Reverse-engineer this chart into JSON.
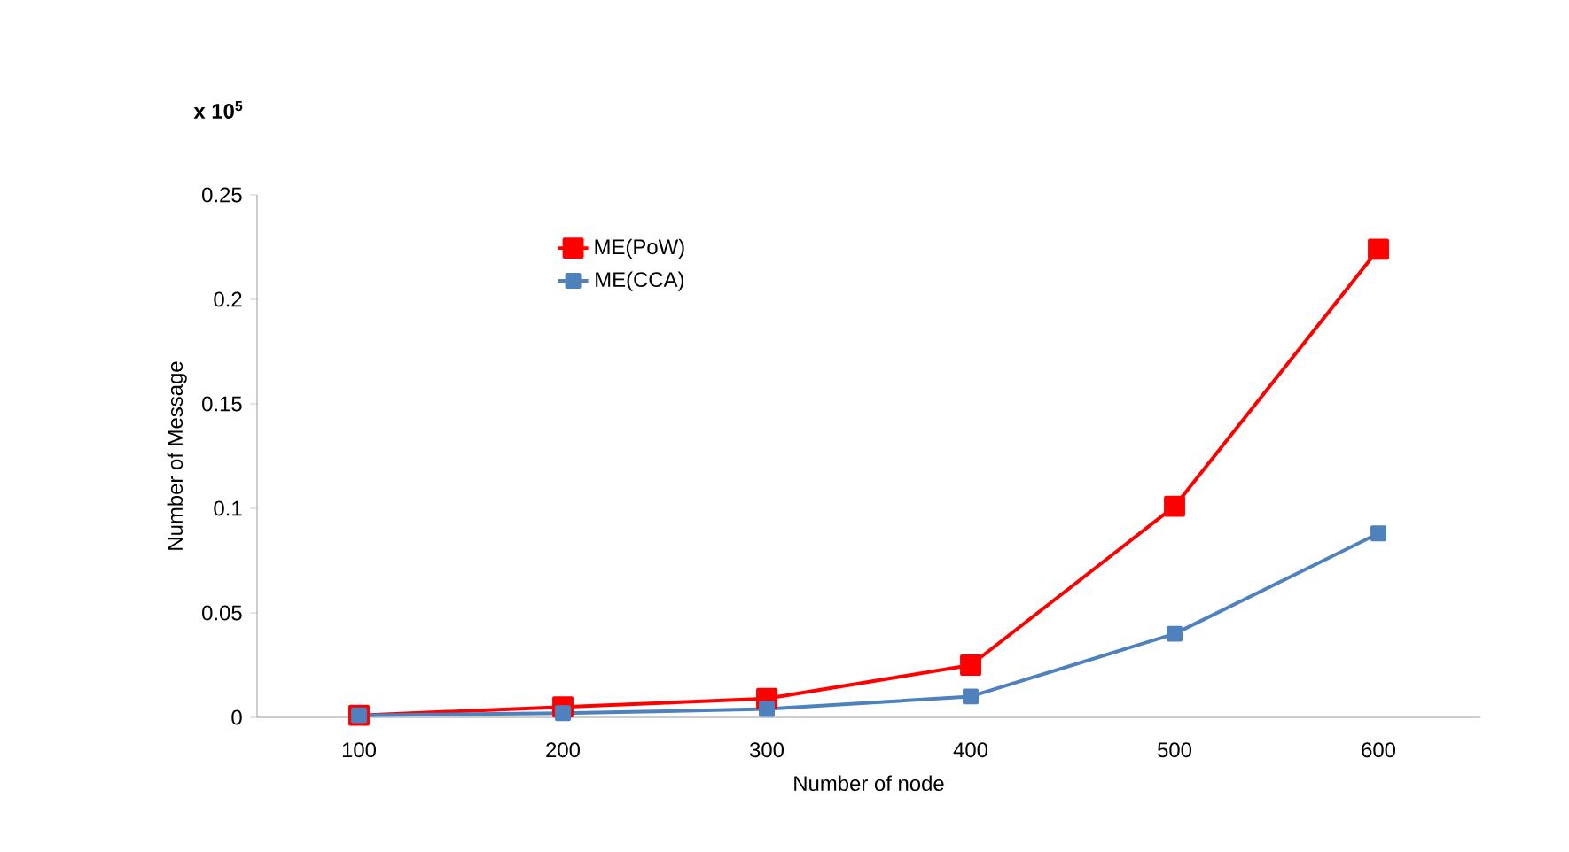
{
  "chart_data": {
    "type": "line",
    "xlabel": "Number of node",
    "ylabel": "Number of Message",
    "annotations": [
      "x 10$^{5}$"
    ],
    "categories": [
      "100",
      "200",
      "300",
      "400",
      "500",
      "600"
    ],
    "series": [
      {
        "name": "ME(PoW)",
        "color": "#ff0000",
        "values": [
          0.001,
          0.005,
          0.009,
          0.025,
          0.101,
          0.224
        ]
      },
      {
        "name": "ME(CCA)",
        "color": "#4f81bd",
        "values": [
          0.001,
          0.002,
          0.004,
          0.01,
          0.04,
          0.088
        ]
      }
    ],
    "ylim": [
      0,
      0.25
    ],
    "yticks": [
      0,
      0.05,
      0.1,
      0.15,
      0.2,
      0.25
    ],
    "grid": false,
    "legend": "top",
    "marker": "square",
    "line_style": "solid"
  }
}
